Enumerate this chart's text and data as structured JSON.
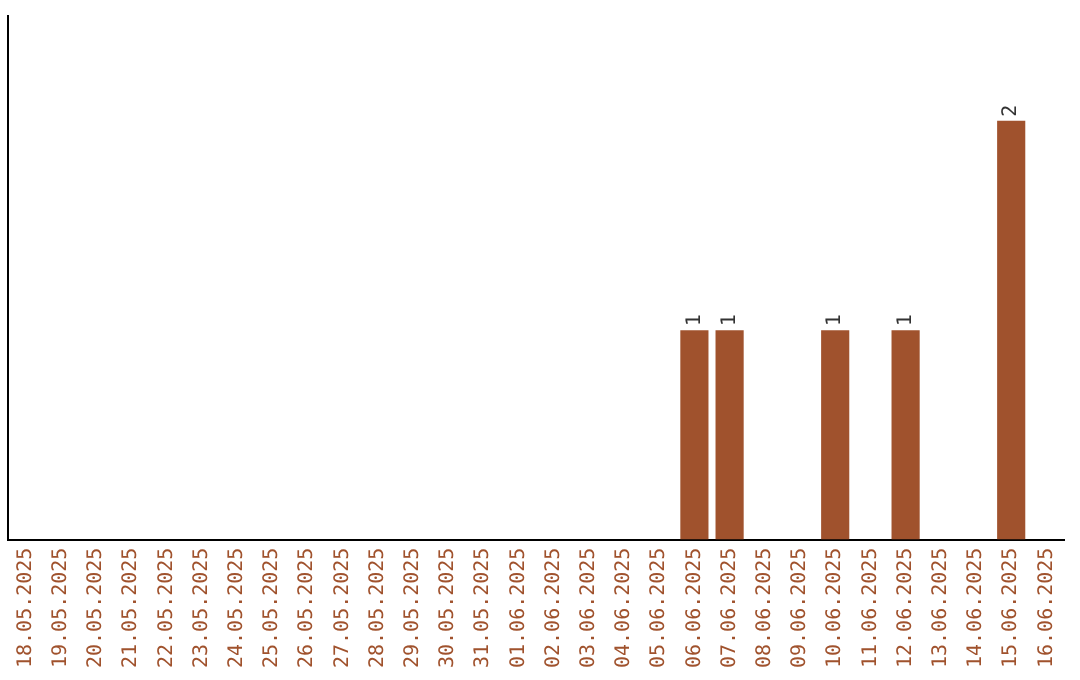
{
  "chart_data": {
    "type": "bar",
    "categories": [
      "18.05.2025",
      "19.05.2025",
      "20.05.2025",
      "21.05.2025",
      "22.05.2025",
      "23.05.2025",
      "24.05.2025",
      "25.05.2025",
      "26.05.2025",
      "27.05.2025",
      "28.05.2025",
      "29.05.2025",
      "30.05.2025",
      "31.05.2025",
      "01.06.2025",
      "02.06.2025",
      "03.06.2025",
      "04.06.2025",
      "05.06.2025",
      "06.06.2025",
      "07.06.2025",
      "08.06.2025",
      "09.06.2025",
      "10.06.2025",
      "11.06.2025",
      "12.06.2025",
      "13.06.2025",
      "14.06.2025",
      "15.06.2025",
      "16.06.2025"
    ],
    "values": [
      null,
      null,
      null,
      null,
      null,
      null,
      null,
      null,
      null,
      null,
      null,
      null,
      null,
      null,
      null,
      null,
      null,
      null,
      null,
      1,
      1,
      null,
      null,
      1,
      null,
      1,
      null,
      null,
      2,
      null
    ],
    "data_labels": true,
    "color": "#a0522d",
    "tick_labels": "x",
    "grid": false,
    "legend": false
  }
}
